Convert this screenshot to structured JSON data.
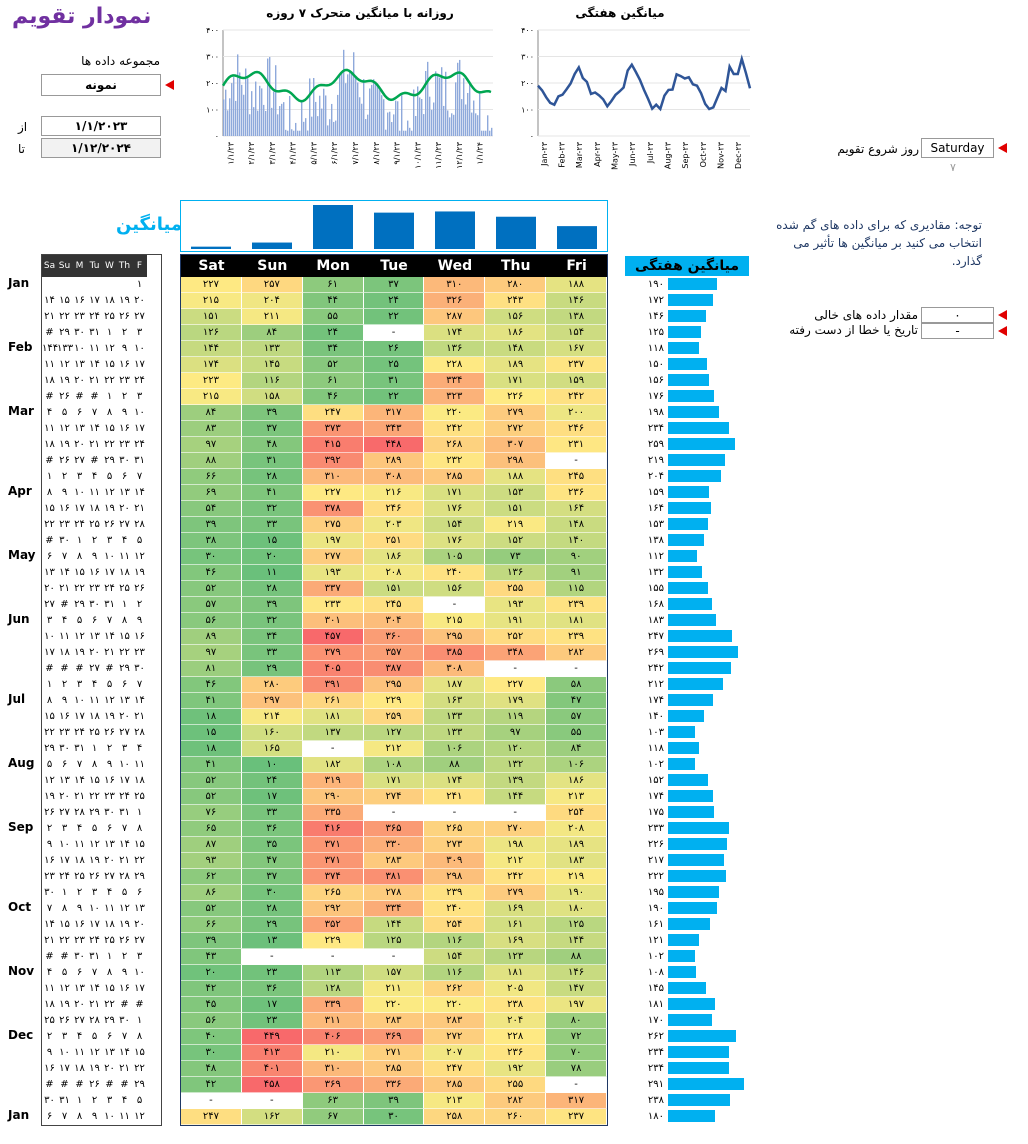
{
  "title": "نمودار تقویم",
  "dataset": {
    "label": "مجموعه داده ها",
    "value": "نمونه"
  },
  "range": {
    "from_label": "از",
    "from": "۱/۱/۲۰۲۳",
    "to_label": "تا",
    "to": "۱/۱۲/۲۰۲۴"
  },
  "start_day": {
    "label": "روز شروع تقویم",
    "value": "Saturday",
    "index": "۷"
  },
  "note": "توجه: مقادیری که برای داده های گم شده انتخاب می کنید بر میانگین ها تأثیر می گذارد.",
  "empty_value": {
    "label": "مقدار داده های خالی",
    "value": "۰"
  },
  "missing_date": {
    "label": "تاریخ یا خطا از دست رفته",
    "value": "-"
  },
  "avg_title": "میانگین",
  "weekly_title": "میانگین هفتگی",
  "chart_data": [
    {
      "type": "bar",
      "title": "روزانه با میانگین متحرک ۷ روزه",
      "ylim": [
        0,
        400
      ],
      "yticks": [
        "۰",
        "۱۰۰",
        "۲۰۰",
        "۳۰۰",
        "۴۰۰"
      ],
      "xticks": [
        "۱/۱/۲۳",
        "۲/۱/۲۳",
        "۳/۱/۲۳",
        "۴/۱/۲۳",
        "۵/۱/۲۳",
        "۶/۱/۲۳",
        "۷/۱/۲۳",
        "۸/۱/۲۳",
        "۹/۱/۲۳",
        "۱۰/۱/۲۳",
        "۱۱/۱/۲۳",
        "۱۲/۱/۲۳",
        "۱/۱/۲۴"
      ]
    },
    {
      "type": "line",
      "title": "میانگین هفتگی",
      "ylim": [
        0,
        400
      ],
      "yticks": [
        "۰",
        "۱۰۰",
        "۲۰۰",
        "۳۰۰",
        "۴۰۰"
      ],
      "xticks": [
        "Jan-۲۳",
        "Feb-۲۳",
        "Mar-۲۳",
        "Apr-۲۳",
        "May-۲۳",
        "Jun-۲۳",
        "Jul-۲۳",
        "Aug-۲۳",
        "Sep-۲۳",
        "Oct-۲۳",
        "Nov-۲۳",
        "Dec-۲۳"
      ],
      "values": [
        190,
        172,
        146,
        125,
        118,
        150,
        156,
        176,
        198,
        234,
        259,
        219,
        204,
        159,
        164,
        153,
        138,
        112,
        132,
        155,
        168,
        183,
        247,
        269,
        242,
        212,
        174,
        140,
        103,
        118,
        102,
        152,
        174,
        175,
        233,
        226,
        217,
        222,
        195,
        190,
        161,
        121,
        102,
        108,
        145,
        181,
        170,
        262,
        234,
        234,
        291,
        238,
        180
      ]
    },
    {
      "type": "bar",
      "title": "میانگین",
      "categories": [
        "Sat",
        "Sun",
        "Mon",
        "Tue",
        "Wed",
        "Thu",
        "Fri"
      ],
      "values": [
        8,
        22,
        150,
        124,
        128,
        110,
        78
      ]
    }
  ],
  "days": [
    "Sat",
    "Sun",
    "Mon",
    "Tue",
    "Wed",
    "Thu",
    "Fri"
  ],
  "cal_header": [
    "Sa",
    "Su",
    "M",
    "Tu",
    "W",
    "Th",
    "F"
  ],
  "months": [
    {
      "label": "Jan",
      "row": 0
    },
    {
      "label": "Feb",
      "row": 4
    },
    {
      "label": "Mar",
      "row": 8
    },
    {
      "label": "Apr",
      "row": 13
    },
    {
      "label": "May",
      "row": 17
    },
    {
      "label": "Jun",
      "row": 21
    },
    {
      "label": "Jul",
      "row": 26
    },
    {
      "label": "Aug",
      "row": 30
    },
    {
      "label": "Sep",
      "row": 34
    },
    {
      "label": "Oct",
      "row": 39
    },
    {
      "label": "Nov",
      "row": 43
    },
    {
      "label": "Dec",
      "row": 47
    },
    {
      "label": "Jan",
      "row": 52
    }
  ],
  "calendar": [
    [
      "",
      "",
      "",
      "",
      "",
      "",
      "۱"
    ],
    [
      "۱۴",
      "۱۵",
      "۱۶",
      "۱۷",
      "۱۸",
      "۱۹",
      "۲۰"
    ],
    [
      "۲۱",
      "۲۲",
      "۲۳",
      "۲۴",
      "۲۵",
      "۲۶",
      "۲۷"
    ],
    [
      "#",
      "۲۹",
      "۳۰",
      "۳۱",
      "۱",
      "۲",
      "۳"
    ],
    [
      "۱۴۴",
      "۱۳۳",
      "۱۰",
      "۱۱",
      "۱۲",
      "۹",
      "۱۰"
    ],
    [
      "۱۱",
      "۱۲",
      "۱۳",
      "۱۴",
      "۱۵",
      "۱۶",
      "۱۷"
    ],
    [
      "۱۸",
      "۱۹",
      "۲۰",
      "۲۱",
      "۲۲",
      "۲۳",
      "۲۴"
    ],
    [
      "#",
      "۲۶",
      "#",
      "#",
      "۱",
      "۲",
      "۳"
    ],
    [
      "۴",
      "۵",
      "۶",
      "۷",
      "۸",
      "۹",
      "۱۰"
    ],
    [
      "۱۱",
      "۱۲",
      "۱۳",
      "۱۴",
      "۱۵",
      "۱۶",
      "۱۷"
    ],
    [
      "۱۸",
      "۱۹",
      "۲۰",
      "۲۱",
      "۲۲",
      "۲۳",
      "۲۴"
    ],
    [
      "#",
      "۲۶",
      "۲۷",
      "#",
      "۲۹",
      "۳۰",
      "۳۱"
    ],
    [
      "۱",
      "۲",
      "۳",
      "۴",
      "۵",
      "۶",
      "۷"
    ],
    [
      "۸",
      "۹",
      "۱۰",
      "۱۱",
      "۱۲",
      "۱۳",
      "۱۴"
    ],
    [
      "۱۵",
      "۱۶",
      "۱۷",
      "۱۸",
      "۱۹",
      "۲۰",
      "۲۱"
    ],
    [
      "۲۲",
      "۲۳",
      "۲۴",
      "۲۵",
      "۲۶",
      "۲۷",
      "۲۸"
    ],
    [
      "#",
      "۳۰",
      "۱",
      "۲",
      "۳",
      "۴",
      "۵"
    ],
    [
      "۶",
      "۷",
      "۸",
      "۹",
      "۱۰",
      "۱۱",
      "۱۲"
    ],
    [
      "۱۳",
      "۱۴",
      "۱۵",
      "۱۶",
      "۱۷",
      "۱۸",
      "۱۹"
    ],
    [
      "۲۰",
      "۲۱",
      "۲۲",
      "۲۳",
      "۲۴",
      "۲۵",
      "۲۶"
    ],
    [
      "۲۷",
      "#",
      "۲۹",
      "۳۰",
      "۳۱",
      "۱",
      "۲"
    ],
    [
      "۳",
      "۴",
      "۵",
      "۶",
      "۷",
      "۸",
      "۹"
    ],
    [
      "۱۰",
      "۱۱",
      "۱۲",
      "۱۳",
      "۱۴",
      "۱۵",
      "۱۶"
    ],
    [
      "۱۷",
      "۱۸",
      "۱۹",
      "۲۰",
      "۲۱",
      "۲۲",
      "۲۳"
    ],
    [
      "#",
      "#",
      "#",
      "۲۷",
      "#",
      "۲۹",
      "۳۰"
    ],
    [
      "۱",
      "۲",
      "۳",
      "۴",
      "۵",
      "۶",
      "۷"
    ],
    [
      "۸",
      "۹",
      "۱۰",
      "۱۱",
      "۱۲",
      "۱۳",
      "۱۴"
    ],
    [
      "۱۵",
      "۱۶",
      "۱۷",
      "۱۸",
      "۱۹",
      "۲۰",
      "۲۱"
    ],
    [
      "۲۲",
      "۲۳",
      "۲۴",
      "۲۵",
      "۲۶",
      "۲۷",
      "۲۸"
    ],
    [
      "۲۹",
      "۳۰",
      "۳۱",
      "۱",
      "۲",
      "۳",
      "۴"
    ],
    [
      "۵",
      "۶",
      "۷",
      "۸",
      "۹",
      "۱۰",
      "۱۱"
    ],
    [
      "۱۲",
      "۱۳",
      "۱۴",
      "۱۵",
      "۱۶",
      "۱۷",
      "۱۸"
    ],
    [
      "۱۹",
      "۲۰",
      "۲۱",
      "۲۲",
      "۲۳",
      "۲۴",
      "۲۵"
    ],
    [
      "۲۶",
      "۲۷",
      "۲۸",
      "۲۹",
      "۳۰",
      "۳۱",
      "۱"
    ],
    [
      "۲",
      "۳",
      "۴",
      "۵",
      "۶",
      "۷",
      "۸"
    ],
    [
      "۹",
      "۱۰",
      "۱۱",
      "۱۲",
      "۱۳",
      "۱۴",
      "۱۵"
    ],
    [
      "۱۶",
      "۱۷",
      "۱۸",
      "۱۹",
      "۲۰",
      "۲۱",
      "۲۲"
    ],
    [
      "۲۳",
      "۲۴",
      "۲۵",
      "۲۶",
      "۲۷",
      "۲۸",
      "۲۹"
    ],
    [
      "۳۰",
      "۱",
      "۲",
      "۳",
      "۴",
      "۵",
      "۶"
    ],
    [
      "۷",
      "۸",
      "۹",
      "۱۰",
      "۱۱",
      "۱۲",
      "۱۳"
    ],
    [
      "۱۴",
      "۱۵",
      "۱۶",
      "۱۷",
      "۱۸",
      "۱۹",
      "۲۰"
    ],
    [
      "۲۱",
      "۲۲",
      "۲۳",
      "۲۴",
      "۲۵",
      "۲۶",
      "۲۷"
    ],
    [
      "#",
      "#",
      "۳۰",
      "۳۱",
      "۱",
      "۲",
      "۳"
    ],
    [
      "۴",
      "۵",
      "۶",
      "۷",
      "۸",
      "۹",
      "۱۰"
    ],
    [
      "۱۱",
      "۱۲",
      "۱۳",
      "۱۴",
      "۱۵",
      "۱۶",
      "۱۷"
    ],
    [
      "۱۸",
      "۱۹",
      "۲۰",
      "۲۱",
      "۲۲",
      "#",
      "#"
    ],
    [
      "۲۵",
      "۲۶",
      "۲۷",
      "۲۸",
      "۲۹",
      "۳۰",
      "۱"
    ],
    [
      "۲",
      "۳",
      "۴",
      "۵",
      "۶",
      "۷",
      "۸"
    ],
    [
      "۹",
      "۱۰",
      "۱۱",
      "۱۲",
      "۱۳",
      "۱۴",
      "۱۵"
    ],
    [
      "۱۶",
      "۱۷",
      "۱۸",
      "۱۹",
      "۲۰",
      "۲۱",
      "۲۲"
    ],
    [
      "#",
      "#",
      "#",
      "۲۶",
      "#",
      "#",
      "۲۹"
    ],
    [
      "۳۰",
      "۳۱",
      "۱",
      "۲",
      "۳",
      "۴",
      "۵"
    ],
    [
      "۶",
      "۷",
      "۸",
      "۹",
      "۱۰",
      "۱۱",
      "۱۲"
    ]
  ],
  "heatmap": [
    [
      "۲۲۷",
      "۲۵۷",
      "۶۱",
      "۳۷",
      "۳۱۰",
      "۲۸۰",
      "۱۸۸"
    ],
    [
      "۲۱۵",
      "۲۰۴",
      "۴۴",
      "۲۴",
      "۳۲۶",
      "۲۴۳",
      "۱۴۶"
    ],
    [
      "۱۵۱",
      "۲۱۱",
      "۵۵",
      "۲۲",
      "۲۸۷",
      "۱۵۶",
      "۱۳۸"
    ],
    [
      "۱۲۶",
      "۸۴",
      "۲۴",
      "-",
      "۱۷۴",
      "۱۸۶",
      "۱۵۴"
    ],
    [
      "۱۴۴",
      "۱۳۳",
      "۳۴",
      "۲۶",
      "۱۳۶",
      "۱۴۸",
      "۱۶۷"
    ],
    [
      "۱۷۴",
      "۱۴۵",
      "۵۲",
      "۲۵",
      "۲۲۸",
      "۱۸۹",
      "۲۳۷"
    ],
    [
      "۲۲۳",
      "۱۱۶",
      "۶۱",
      "۳۱",
      "۳۳۴",
      "۱۷۱",
      "۱۵۹"
    ],
    [
      "۲۱۵",
      "۱۵۸",
      "۴۶",
      "۲۲",
      "۳۲۳",
      "۲۲۶",
      "۲۴۲"
    ],
    [
      "۸۴",
      "۳۹",
      "۲۴۷",
      "۳۱۷",
      "۲۲۰",
      "۲۷۹",
      "۲۰۰"
    ],
    [
      "۸۳",
      "۳۷",
      "۳۷۳",
      "۳۴۳",
      "۲۴۲",
      "۲۷۲",
      "۲۴۶"
    ],
    [
      "۹۷",
      "۴۸",
      "۴۱۵",
      "۴۴۸",
      "۲۶۸",
      "۳۰۷",
      "۲۳۱"
    ],
    [
      "۸۸",
      "۳۱",
      "۳۹۲",
      "۲۸۹",
      "۲۳۲",
      "۲۹۸",
      "-"
    ],
    [
      "۶۶",
      "۲۸",
      "۳۱۰",
      "۳۰۸",
      "۲۸۵",
      "۱۸۸",
      "۲۴۵"
    ],
    [
      "۶۹",
      "۴۱",
      "۲۲۷",
      "۲۱۶",
      "۱۷۱",
      "۱۵۳",
      "۲۳۶"
    ],
    [
      "۵۴",
      "۳۲",
      "۳۷۸",
      "۲۴۶",
      "۱۷۶",
      "۱۵۱",
      "۱۶۴"
    ],
    [
      "۳۹",
      "۳۳",
      "۲۷۵",
      "۲۰۳",
      "۱۵۴",
      "۲۱۹",
      "۱۴۸"
    ],
    [
      "۳۸",
      "۱۵",
      "۱۹۷",
      "۲۵۱",
      "۱۷۶",
      "۱۵۲",
      "۱۴۰"
    ],
    [
      "۳۰",
      "۲۰",
      "۲۷۷",
      "۱۸۶",
      "۱۰۵",
      "۷۳",
      "۹۰"
    ],
    [
      "۴۶",
      "۱۱",
      "۱۹۳",
      "۲۰۸",
      "۲۴۰",
      "۱۳۶",
      "۹۱"
    ],
    [
      "۵۲",
      "۲۸",
      "۳۳۷",
      "۱۵۱",
      "۱۵۶",
      "۲۵۵",
      "۱۱۵"
    ],
    [
      "۵۷",
      "۳۹",
      "۲۳۳",
      "۲۴۵",
      "-",
      "۱۹۳",
      "۲۳۹"
    ],
    [
      "۵۶",
      "۳۲",
      "۳۰۱",
      "۳۰۴",
      "۲۱۵",
      "۱۹۱",
      "۱۸۱"
    ],
    [
      "۸۹",
      "۳۴",
      "۴۵۷",
      "۳۶۰",
      "۲۹۵",
      "۲۵۲",
      "۲۳۹"
    ],
    [
      "۹۷",
      "۳۳",
      "۳۷۹",
      "۳۵۷",
      "۳۸۵",
      "۳۴۸",
      "۲۸۲"
    ],
    [
      "۸۱",
      "۲۹",
      "۴۰۵",
      "۳۸۷",
      "۳۰۸",
      "-",
      "-"
    ],
    [
      "۴۶",
      "۲۸۰",
      "۳۹۱",
      "۲۹۵",
      "۱۸۷",
      "۲۲۷",
      "۵۸"
    ],
    [
      "۴۱",
      "۲۹۷",
      "۲۶۱",
      "۲۲۹",
      "۱۶۳",
      "۱۷۹",
      "۴۷"
    ],
    [
      "۱۸",
      "۲۱۴",
      "۱۸۱",
      "۲۵۹",
      "۱۳۳",
      "۱۱۹",
      "۵۷"
    ],
    [
      "۱۵",
      "۱۶۰",
      "۱۳۷",
      "۱۲۷",
      "۱۳۳",
      "۹۷",
      "۵۵"
    ],
    [
      "۱۸",
      "۱۶۵",
      "-",
      "۲۱۲",
      "۱۰۶",
      "۱۲۰",
      "۸۴"
    ],
    [
      "۴۱",
      "۱۰",
      "۱۸۲",
      "۱۰۸",
      "۸۸",
      "۱۳۲",
      "۱۰۶"
    ],
    [
      "۵۲",
      "۲۴",
      "۳۱۹",
      "۱۷۱",
      "۱۷۴",
      "۱۳۹",
      "۱۸۶"
    ],
    [
      "۵۲",
      "۱۷",
      "۲۹۰",
      "۲۷۴",
      "۲۴۱",
      "۱۴۴",
      "۲۱۳"
    ],
    [
      "۷۶",
      "۳۳",
      "۳۳۵",
      "-",
      "-",
      "-",
      "۲۵۴"
    ],
    [
      "۶۵",
      "۳۶",
      "۴۱۶",
      "۳۶۵",
      "۲۶۵",
      "۲۷۰",
      "۲۰۸"
    ],
    [
      "۸۷",
      "۳۵",
      "۳۷۱",
      "۳۳۰",
      "۲۷۳",
      "۱۹۸",
      "۱۸۹"
    ],
    [
      "۹۳",
      "۴۷",
      "۳۷۱",
      "۲۸۳",
      "۳۰۹",
      "۲۱۲",
      "۱۸۳"
    ],
    [
      "۶۲",
      "۳۷",
      "۳۷۴",
      "۳۸۱",
      "۲۹۸",
      "۲۴۲",
      "۲۱۹"
    ],
    [
      "۸۶",
      "۳۰",
      "۲۶۵",
      "۲۷۸",
      "۲۳۹",
      "۲۷۹",
      "۱۹۰"
    ],
    [
      "۵۲",
      "۲۸",
      "۲۹۲",
      "۳۳۴",
      "۲۴۰",
      "۱۶۹",
      "۱۸۰"
    ],
    [
      "۶۶",
      "۲۹",
      "۳۵۲",
      "۱۴۴",
      "۲۵۴",
      "۱۶۱",
      "۱۲۵"
    ],
    [
      "۳۹",
      "۱۳",
      "۲۲۹",
      "۱۲۵",
      "۱۱۶",
      "۱۶۹",
      "۱۴۴"
    ],
    [
      "۴۳",
      "-",
      "-",
      "-",
      "۱۵۴",
      "۱۲۳",
      "۸۸"
    ],
    [
      "۲۰",
      "۲۳",
      "۱۱۳",
      "۱۵۷",
      "۱۱۶",
      "۱۸۱",
      "۱۴۶"
    ],
    [
      "۴۲",
      "۳۶",
      "۱۲۸",
      "۲۱۱",
      "۲۶۲",
      "۲۰۵",
      "۱۴۷"
    ],
    [
      "۴۵",
      "۱۷",
      "۳۳۹",
      "۲۲۰",
      "۲۲۰",
      "۲۳۸",
      "۱۹۷"
    ],
    [
      "۵۶",
      "۲۳",
      "۳۱۱",
      "۲۸۳",
      "۲۸۳",
      "۲۰۴",
      "۸۰"
    ],
    [
      "۴۰",
      "۴۴۹",
      "۴۰۶",
      "۳۶۹",
      "۲۷۲",
      "۲۲۸",
      "۷۲"
    ],
    [
      "۳۰",
      "۴۱۳",
      "۲۱۰",
      "۲۷۱",
      "۲۰۷",
      "۲۳۶",
      "۷۰"
    ],
    [
      "۴۸",
      "۴۰۱",
      "۳۱۰",
      "۲۸۵",
      "۲۴۷",
      "۱۹۲",
      "۷۸"
    ],
    [
      "۴۲",
      "۴۵۸",
      "۳۶۹",
      "۳۳۶",
      "۲۸۵",
      "۲۵۵",
      "-"
    ],
    [
      "-",
      "-",
      "۶۳",
      "۳۹",
      "۲۱۳",
      "۲۸۲",
      "۳۱۷"
    ],
    [
      "۲۴۷",
      "۱۶۲",
      "۶۷",
      "۳۰",
      "۲۵۸",
      "۲۶۰",
      "۲۳۷"
    ]
  ],
  "weekly": [
    "۱۹۰",
    "۱۷۲",
    "۱۴۶",
    "۱۲۵",
    "۱۱۸",
    "۱۵۰",
    "۱۵۶",
    "۱۷۶",
    "۱۹۸",
    "۲۳۴",
    "۲۵۹",
    "۲۱۹",
    "۲۰۴",
    "۱۵۹",
    "۱۶۴",
    "۱۵۳",
    "۱۳۸",
    "۱۱۲",
    "۱۳۲",
    "۱۵۵",
    "۱۶۸",
    "۱۸۳",
    "۲۴۷",
    "۲۶۹",
    "۲۴۲",
    "۲۱۲",
    "۱۷۴",
    "۱۴۰",
    "۱۰۳",
    "۱۱۸",
    "۱۰۲",
    "۱۵۲",
    "۱۷۴",
    "۱۷۵",
    "۲۳۳",
    "۲۲۶",
    "۲۱۷",
    "۲۲۲",
    "۱۹۵",
    "۱۹۰",
    "۱۶۱",
    "۱۲۱",
    "۱۰۲",
    "۱۰۸",
    "۱۴۵",
    "۱۸۱",
    "۱۷۰",
    "۲۶۲",
    "۲۳۴",
    "۲۳۴",
    "۲۹۱",
    "۲۳۸",
    "۱۸۰"
  ],
  "colors": {
    "accent": "#00b0f0",
    "title": "#7030a0",
    "bar": "#0070c0",
    "line": "#2f5597",
    "ma": "#00a651",
    "daily": "#8ea9db"
  }
}
